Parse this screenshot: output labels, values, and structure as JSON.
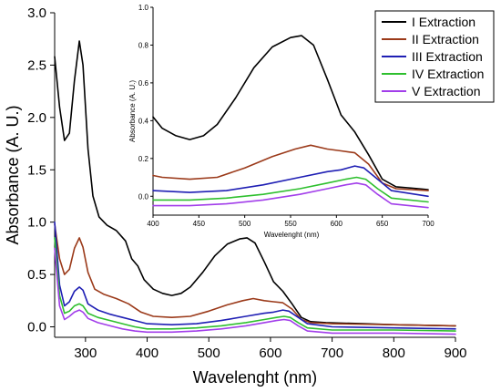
{
  "chart_data": [
    {
      "type": "line",
      "xlabel": "Wavelenght (nm)",
      "ylabel": "Absorbance (A. U.)",
      "xlim": [
        250,
        900
      ],
      "ylim": [
        -0.1,
        3.0
      ],
      "x_ticks": [
        "300",
        "400",
        "500",
        "600",
        "700",
        "800",
        "900"
      ],
      "y_ticks": [
        "0.0",
        "0.5",
        "1.0",
        "1.5",
        "2.0",
        "2.5",
        "3.0"
      ],
      "grid": false,
      "legend_placement": "top-right",
      "series": [
        {
          "name": "I Extraction",
          "color": "#000000",
          "points": [
            [
              250,
              2.58
            ],
            [
              258,
              2.1
            ],
            [
              266,
              1.78
            ],
            [
              274,
              1.85
            ],
            [
              282,
              2.35
            ],
            [
              290,
              2.73
            ],
            [
              296,
              2.5
            ],
            [
              304,
              1.7
            ],
            [
              312,
              1.25
            ],
            [
              322,
              1.05
            ],
            [
              335,
              0.97
            ],
            [
              350,
              0.92
            ],
            [
              365,
              0.82
            ],
            [
              375,
              0.65
            ],
            [
              385,
              0.58
            ],
            [
              395,
              0.45
            ],
            [
              410,
              0.36
            ],
            [
              425,
              0.32
            ],
            [
              440,
              0.3
            ],
            [
              455,
              0.32
            ],
            [
              470,
              0.38
            ],
            [
              490,
              0.52
            ],
            [
              510,
              0.68
            ],
            [
              530,
              0.79
            ],
            [
              550,
              0.84
            ],
            [
              562,
              0.85
            ],
            [
              575,
              0.8
            ],
            [
              590,
              0.62
            ],
            [
              605,
              0.43
            ],
            [
              620,
              0.34
            ],
            [
              635,
              0.22
            ],
            [
              650,
              0.09
            ],
            [
              665,
              0.05
            ],
            [
              690,
              0.04
            ],
            [
              750,
              0.03
            ],
            [
              800,
              0.02
            ],
            [
              900,
              0.01
            ]
          ]
        },
        {
          "name": "II Extraction",
          "color": "#9B3A1A",
          "points": [
            [
              250,
              0.98
            ],
            [
              258,
              0.65
            ],
            [
              266,
              0.5
            ],
            [
              274,
              0.55
            ],
            [
              282,
              0.75
            ],
            [
              290,
              0.85
            ],
            [
              296,
              0.76
            ],
            [
              304,
              0.52
            ],
            [
              315,
              0.36
            ],
            [
              330,
              0.31
            ],
            [
              350,
              0.27
            ],
            [
              370,
              0.22
            ],
            [
              390,
              0.14
            ],
            [
              410,
              0.1
            ],
            [
              440,
              0.09
            ],
            [
              470,
              0.1
            ],
            [
              500,
              0.15
            ],
            [
              530,
              0.21
            ],
            [
              555,
              0.25
            ],
            [
              572,
              0.27
            ],
            [
              590,
              0.25
            ],
            [
              605,
              0.24
            ],
            [
              620,
              0.23
            ],
            [
              635,
              0.17
            ],
            [
              650,
              0.07
            ],
            [
              665,
              0.04
            ],
            [
              700,
              0.03
            ],
            [
              800,
              0.02
            ],
            [
              900,
              0.01
            ]
          ]
        },
        {
          "name": "III Extraction",
          "color": "#1F1FB4",
          "points": [
            [
              250,
              1.0
            ],
            [
              258,
              0.4
            ],
            [
              266,
              0.2
            ],
            [
              274,
              0.24
            ],
            [
              282,
              0.34
            ],
            [
              290,
              0.38
            ],
            [
              296,
              0.35
            ],
            [
              304,
              0.22
            ],
            [
              320,
              0.16
            ],
            [
              340,
              0.12
            ],
            [
              360,
              0.09
            ],
            [
              380,
              0.06
            ],
            [
              400,
              0.03
            ],
            [
              440,
              0.02
            ],
            [
              480,
              0.03
            ],
            [
              520,
              0.06
            ],
            [
              560,
              0.1
            ],
            [
              590,
              0.13
            ],
            [
              605,
              0.14
            ],
            [
              620,
              0.16
            ],
            [
              630,
              0.15
            ],
            [
              645,
              0.09
            ],
            [
              660,
              0.03
            ],
            [
              700,
              0.0
            ],
            [
              800,
              -0.01
            ],
            [
              900,
              -0.02
            ]
          ]
        },
        {
          "name": "IV Extraction",
          "color": "#2EBF2E",
          "points": [
            [
              250,
              0.85
            ],
            [
              258,
              0.3
            ],
            [
              266,
              0.13
            ],
            [
              274,
              0.15
            ],
            [
              282,
              0.2
            ],
            [
              290,
              0.22
            ],
            [
              296,
              0.2
            ],
            [
              304,
              0.13
            ],
            [
              320,
              0.09
            ],
            [
              340,
              0.06
            ],
            [
              360,
              0.03
            ],
            [
              380,
              0.0
            ],
            [
              400,
              -0.02
            ],
            [
              440,
              -0.02
            ],
            [
              480,
              -0.01
            ],
            [
              520,
              0.01
            ],
            [
              560,
              0.04
            ],
            [
              590,
              0.07
            ],
            [
              610,
              0.09
            ],
            [
              622,
              0.1
            ],
            [
              632,
              0.09
            ],
            [
              645,
              0.04
            ],
            [
              660,
              -0.01
            ],
            [
              700,
              -0.03
            ],
            [
              800,
              -0.03
            ],
            [
              900,
              -0.04
            ]
          ]
        },
        {
          "name": "V Extraction",
          "color": "#A23EEA",
          "points": [
            [
              250,
              0.75
            ],
            [
              258,
              0.2
            ],
            [
              266,
              0.07
            ],
            [
              274,
              0.1
            ],
            [
              282,
              0.14
            ],
            [
              290,
              0.16
            ],
            [
              296,
              0.14
            ],
            [
              304,
              0.08
            ],
            [
              320,
              0.04
            ],
            [
              340,
              0.01
            ],
            [
              360,
              -0.02
            ],
            [
              380,
              -0.04
            ],
            [
              400,
              -0.05
            ],
            [
              440,
              -0.05
            ],
            [
              480,
              -0.04
            ],
            [
              520,
              -0.02
            ],
            [
              560,
              0.01
            ],
            [
              590,
              0.04
            ],
            [
              610,
              0.06
            ],
            [
              622,
              0.07
            ],
            [
              632,
              0.06
            ],
            [
              645,
              0.01
            ],
            [
              660,
              -0.04
            ],
            [
              700,
              -0.06
            ],
            [
              800,
              -0.06
            ],
            [
              900,
              -0.07
            ]
          ]
        }
      ]
    },
    {
      "type": "line",
      "xlabel": "Wavelenght (nm)",
      "ylabel": "Absorbance (A. U.)",
      "xlim": [
        400,
        700
      ],
      "ylim": [
        -0.1,
        1.0
      ],
      "x_ticks": [
        "400",
        "450",
        "500",
        "550",
        "600",
        "650",
        "700"
      ],
      "y_ticks": [
        "0.0",
        "0.2",
        "0.4",
        "0.6",
        "0.8",
        "1.0"
      ],
      "grid": false,
      "series": [
        {
          "color": "#000000",
          "points": [
            [
              400,
              0.42
            ],
            [
              410,
              0.36
            ],
            [
              425,
              0.32
            ],
            [
              440,
              0.3
            ],
            [
              455,
              0.32
            ],
            [
              470,
              0.38
            ],
            [
              490,
              0.52
            ],
            [
              510,
              0.68
            ],
            [
              530,
              0.79
            ],
            [
              550,
              0.84
            ],
            [
              562,
              0.85
            ],
            [
              575,
              0.8
            ],
            [
              590,
              0.62
            ],
            [
              605,
              0.43
            ],
            [
              620,
              0.34
            ],
            [
              635,
              0.22
            ],
            [
              650,
              0.09
            ],
            [
              665,
              0.05
            ],
            [
              690,
              0.04
            ],
            [
              700,
              0.035
            ]
          ]
        },
        {
          "color": "#9B3A1A",
          "points": [
            [
              400,
              0.11
            ],
            [
              410,
              0.1
            ],
            [
              440,
              0.09
            ],
            [
              470,
              0.1
            ],
            [
              500,
              0.15
            ],
            [
              530,
              0.21
            ],
            [
              555,
              0.25
            ],
            [
              572,
              0.27
            ],
            [
              590,
              0.25
            ],
            [
              605,
              0.24
            ],
            [
              620,
              0.23
            ],
            [
              635,
              0.17
            ],
            [
              650,
              0.07
            ],
            [
              665,
              0.04
            ],
            [
              700,
              0.03
            ]
          ]
        },
        {
          "color": "#1F1FB4",
          "points": [
            [
              400,
              0.03
            ],
            [
              440,
              0.02
            ],
            [
              480,
              0.03
            ],
            [
              520,
              0.06
            ],
            [
              560,
              0.1
            ],
            [
              590,
              0.13
            ],
            [
              605,
              0.14
            ],
            [
              620,
              0.16
            ],
            [
              630,
              0.15
            ],
            [
              645,
              0.09
            ],
            [
              660,
              0.03
            ],
            [
              700,
              0.0
            ]
          ]
        },
        {
          "color": "#2EBF2E",
          "points": [
            [
              400,
              -0.02
            ],
            [
              440,
              -0.02
            ],
            [
              480,
              -0.01
            ],
            [
              520,
              0.01
            ],
            [
              560,
              0.04
            ],
            [
              590,
              0.07
            ],
            [
              610,
              0.09
            ],
            [
              622,
              0.1
            ],
            [
              632,
              0.09
            ],
            [
              645,
              0.04
            ],
            [
              660,
              -0.01
            ],
            [
              700,
              -0.03
            ]
          ]
        },
        {
          "color": "#A23EEA",
          "points": [
            [
              400,
              -0.05
            ],
            [
              440,
              -0.05
            ],
            [
              480,
              -0.04
            ],
            [
              520,
              -0.02
            ],
            [
              560,
              0.01
            ],
            [
              590,
              0.04
            ],
            [
              610,
              0.06
            ],
            [
              622,
              0.07
            ],
            [
              632,
              0.06
            ],
            [
              645,
              0.01
            ],
            [
              660,
              -0.04
            ],
            [
              700,
              -0.06
            ]
          ]
        }
      ]
    }
  ]
}
